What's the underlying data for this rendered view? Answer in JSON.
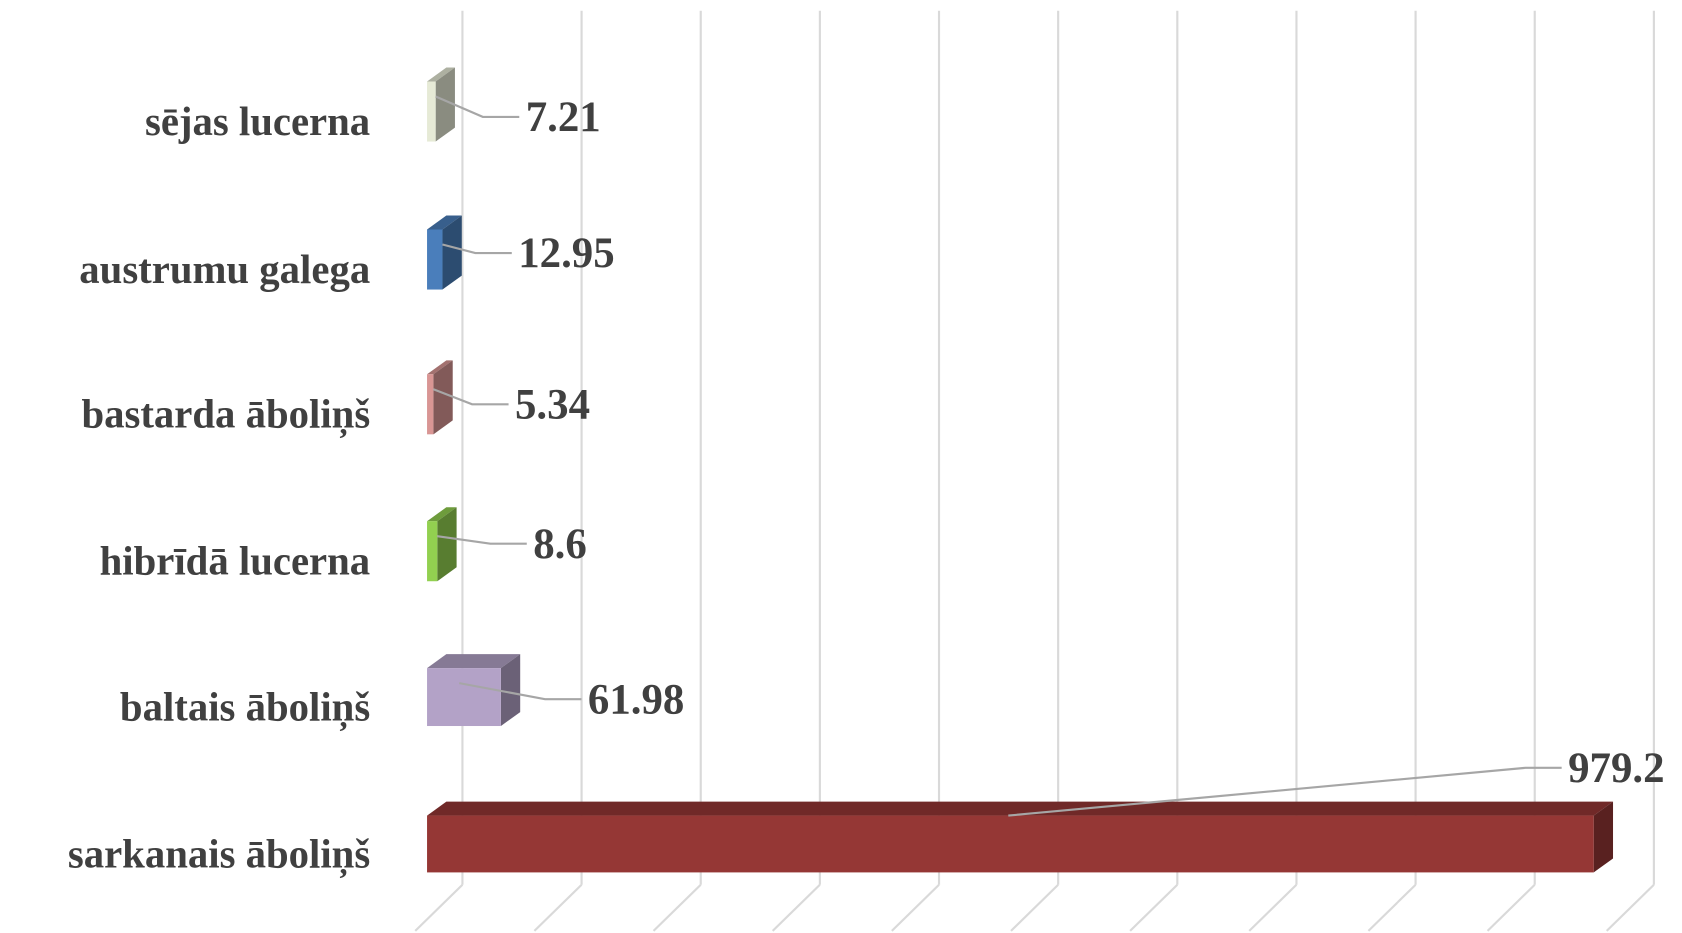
{
  "chart_data": {
    "type": "bar3d",
    "orientation": "horizontal",
    "categories": [
      "sējas lucerna",
      "austrumu galega",
      "bastarda āboliņš",
      "hibrīdā lucerna",
      "baltais āboliņš",
      "sarkanais āboliņš"
    ],
    "values": [
      7.21,
      12.95,
      5.34,
      8.6,
      61.98,
      979.2
    ],
    "colors": [
      "#e6ead6",
      "#4a7ebb",
      "#d99694",
      "#92d050",
      "#b3a2c7",
      "#953735"
    ],
    "xlim": [
      0,
      1000
    ],
    "xticks": [
      0,
      100,
      200,
      300,
      400,
      500,
      600,
      700,
      800,
      900,
      1000
    ],
    "grid": true
  }
}
